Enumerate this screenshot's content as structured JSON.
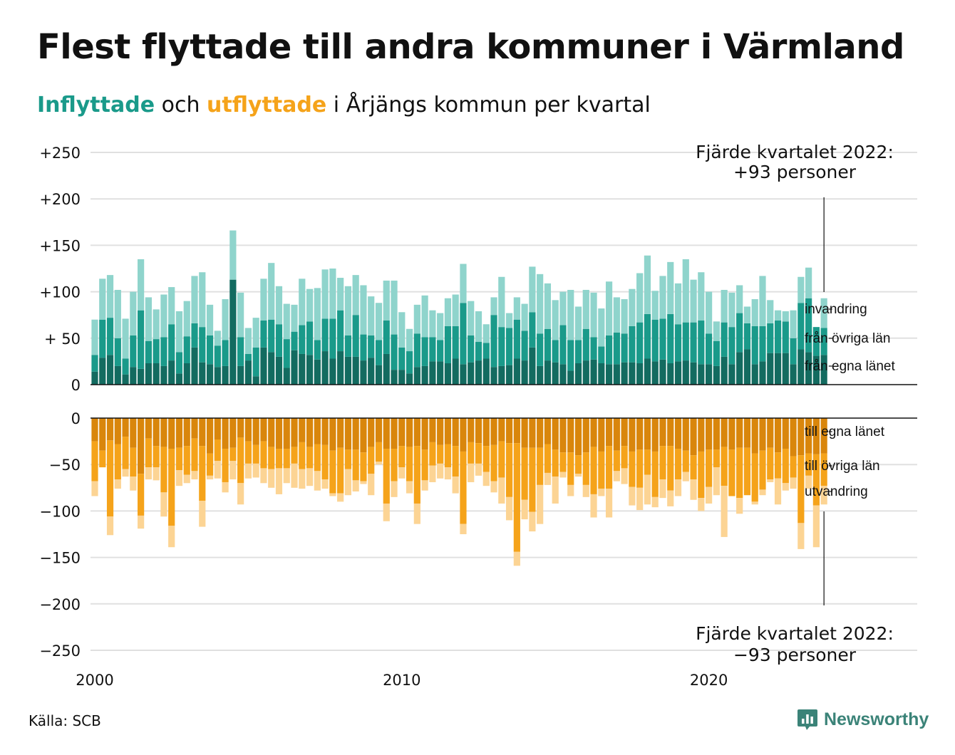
{
  "title": "Flest flyttade till andra kommuner i Värmland",
  "subtitle": {
    "in_word": "Inflyttade",
    "mid1": " och ",
    "out_word": "utflyttade",
    "rest": " i Årjängs kommun per kvartal"
  },
  "source": "Källa: SCB",
  "brand": "Newsworthy",
  "colors": {
    "in_egna": "#136b60",
    "in_ovriga": "#1a9a8a",
    "in_invandring": "#8fd4cc",
    "out_egna": "#d9860c",
    "out_ovriga": "#f5a31a",
    "out_utvandring": "#fcd494",
    "grid": "#e0e0e0",
    "brand": "#3b8378"
  },
  "chart_data": {
    "type": "bar",
    "stacked": true,
    "x_start": 2000,
    "x_labels": [
      "2000",
      "2010",
      "2020"
    ],
    "y_ticks_top": [
      "+250",
      "+200",
      "+150",
      "+100",
      "+ 50",
      "0"
    ],
    "y_ticks_bottom": [
      "0",
      "−50",
      "−100",
      "−150",
      "−200",
      "−250"
    ],
    "ylim_top": [
      0,
      250
    ],
    "ylim_bottom": [
      -250,
      0
    ],
    "grid": true,
    "annotation_top": [
      "Fjärde kvartalet 2022:",
      "+93 personer"
    ],
    "annotation_bottom": [
      "Fjärde kvartalet 2022:",
      "−93 personer"
    ],
    "series_in": [
      {
        "name": "från egna länet",
        "values": [
          14,
          29,
          32,
          20,
          11,
          19,
          17,
          23,
          23,
          20,
          26,
          12,
          23,
          40,
          24,
          22,
          19,
          20,
          113,
          20,
          26,
          9,
          40,
          35,
          30,
          18,
          37,
          33,
          32,
          27,
          36,
          28,
          36,
          30,
          30,
          26,
          29,
          21,
          33,
          16,
          16,
          12,
          19,
          20,
          25,
          25,
          23,
          28,
          22,
          24,
          26,
          28,
          19,
          20,
          21,
          28,
          26,
          40,
          20,
          26,
          24,
          22,
          15,
          23,
          26,
          27,
          23,
          22,
          22,
          24,
          24,
          23,
          28,
          25,
          27,
          23,
          25,
          26,
          24,
          22,
          22,
          20,
          30,
          22,
          35,
          38,
          22,
          25,
          34,
          34,
          34,
          22,
          38,
          35,
          31,
          32
        ]
      },
      {
        "name": "från övriga län",
        "values": [
          18,
          41,
          40,
          30,
          17,
          34,
          63,
          24,
          26,
          31,
          39,
          23,
          29,
          26,
          38,
          31,
          23,
          28,
          0,
          31,
          7,
          31,
          29,
          35,
          35,
          31,
          20,
          31,
          36,
          21,
          35,
          43,
          44,
          23,
          45,
          28,
          24,
          27,
          36,
          38,
          24,
          24,
          36,
          31,
          26,
          23,
          40,
          35,
          66,
          29,
          20,
          17,
          56,
          42,
          40,
          42,
          32,
          38,
          35,
          34,
          24,
          42,
          33,
          25,
          34,
          24,
          18,
          31,
          34,
          31,
          39,
          44,
          48,
          45,
          44,
          53,
          40,
          41,
          43,
          47,
          33,
          27,
          37,
          40,
          42,
          28,
          41,
          38,
          32,
          35,
          34,
          28,
          50,
          58,
          31,
          29
        ]
      },
      {
        "name": "invandring",
        "values": [
          38,
          44,
          46,
          52,
          43,
          47,
          55,
          47,
          32,
          46,
          40,
          44,
          38,
          51,
          59,
          33,
          16,
          44,
          53,
          48,
          28,
          32,
          45,
          61,
          41,
          38,
          29,
          50,
          35,
          56,
          53,
          54,
          35,
          53,
          43,
          53,
          42,
          40,
          43,
          58,
          38,
          24,
          31,
          45,
          29,
          29,
          30,
          34,
          42,
          37,
          33,
          20,
          19,
          54,
          16,
          24,
          29,
          49,
          64,
          49,
          43,
          36,
          54,
          36,
          42,
          48,
          41,
          58,
          38,
          37,
          40,
          53,
          63,
          31,
          46,
          56,
          44,
          68,
          46,
          52,
          45,
          21,
          35,
          37,
          30,
          18,
          29,
          54,
          25,
          11,
          11,
          30,
          28,
          33,
          0,
          32
        ]
      }
    ],
    "series_out": [
      {
        "name": "till egna länet",
        "values": [
          25,
          35,
          24,
          28,
          20,
          32,
          60,
          22,
          30,
          31,
          33,
          32,
          30,
          22,
          30,
          38,
          23,
          33,
          32,
          21,
          25,
          29,
          25,
          31,
          33,
          33,
          31,
          26,
          31,
          28,
          29,
          35,
          32,
          34,
          34,
          37,
          31,
          26,
          33,
          33,
          30,
          31,
          30,
          34,
          26,
          29,
          28,
          30,
          36,
          26,
          27,
          30,
          29,
          25,
          27,
          27,
          32,
          32,
          32,
          28,
          34,
          37,
          37,
          40,
          37,
          31,
          36,
          30,
          35,
          30,
          36,
          34,
          34,
          36,
          30,
          30,
          33,
          35,
          40,
          36,
          34,
          34,
          31,
          34,
          32,
          32,
          38,
          35,
          32,
          37,
          33,
          41,
          40,
          38,
          39,
          38
        ]
      },
      {
        "name": "till övriga län",
        "values": [
          43,
          18,
          82,
          38,
          35,
          31,
          45,
          31,
          23,
          49,
          83,
          24,
          31,
          35,
          59,
          24,
          23,
          36,
          14,
          49,
          24,
          20,
          29,
          24,
          21,
          21,
          18,
          29,
          23,
          29,
          37,
          46,
          49,
          21,
          33,
          31,
          29,
          21,
          59,
          35,
          23,
          37,
          62,
          33,
          25,
          20,
          25,
          33,
          78,
          23,
          22,
          28,
          39,
          39,
          58,
          117,
          56,
          69,
          40,
          31,
          29,
          21,
          35,
          20,
          35,
          51,
          40,
          46,
          22,
          24,
          38,
          41,
          27,
          49,
          36,
          48,
          33,
          23,
          26,
          50,
          40,
          19,
          42,
          50,
          54,
          51,
          52,
          42,
          34,
          28,
          37,
          23,
          73,
          24,
          55,
          35
        ]
      },
      {
        "name": "utvandring",
        "values": [
          16,
          0,
          20,
          10,
          8,
          15,
          14,
          13,
          14,
          26,
          23,
          17,
          9,
          9,
          28,
          4,
          19,
          11,
          20,
          23,
          16,
          15,
          16,
          20,
          28,
          16,
          26,
          21,
          19,
          21,
          10,
          3,
          9,
          28,
          12,
          3,
          23,
          3,
          19,
          17,
          12,
          13,
          22,
          11,
          18,
          16,
          13,
          18,
          11,
          20,
          13,
          15,
          12,
          28,
          25,
          15,
          21,
          21,
          42,
          13,
          29,
          6,
          12,
          3,
          13,
          25,
          8,
          31,
          11,
          17,
          20,
          24,
          32,
          11,
          20,
          17,
          18,
          10,
          22,
          14,
          18,
          30,
          55,
          0,
          17,
          0,
          3,
          6,
          3,
          28,
          8,
          12,
          28,
          14,
          45,
          20
        ]
      }
    ],
    "labels_in": [
      "invandring",
      "från övriga län",
      "från egna länet"
    ],
    "labels_out": [
      "till egna länet",
      "till övriga län",
      "utvandring"
    ]
  }
}
